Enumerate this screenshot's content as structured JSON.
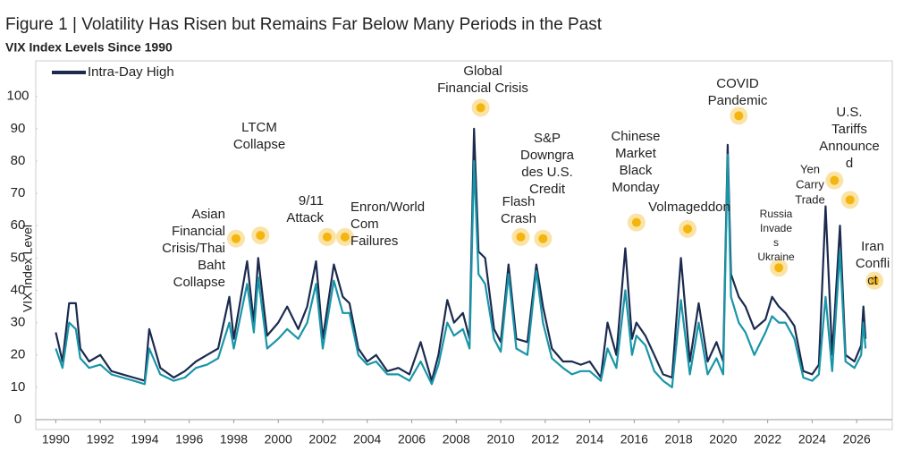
{
  "chart_data": {
    "type": "line",
    "title": "Figure 1 | Volatility Has Risen but Remains Far Below Many Periods in the Past",
    "subtitle": "VIX Index Levels Since 1990",
    "y_label": "VIX Index Level",
    "xlim": [
      1989.1,
      2027.6
    ],
    "ylim": [
      0,
      111
    ],
    "xticks": [
      1990,
      1992,
      1994,
      1996,
      1998,
      2000,
      2002,
      2004,
      2006,
      2008,
      2010,
      2012,
      2014,
      2016,
      2018,
      2020,
      2022,
      2024,
      2026
    ],
    "yticks": [
      0,
      10,
      20,
      30,
      40,
      50,
      60,
      70,
      80,
      90,
      100
    ],
    "legend": "top-left",
    "x": [
      1990.0,
      1990.3,
      1990.6,
      1990.9,
      1991.1,
      1991.5,
      1992.0,
      1992.5,
      1993.0,
      1993.5,
      1994.0,
      1994.2,
      1994.7,
      1995.3,
      1995.8,
      1996.3,
      1996.8,
      1997.3,
      1997.8,
      1998.0,
      1998.6,
      1998.9,
      1999.1,
      1999.5,
      2000.0,
      2000.4,
      2000.9,
      2001.3,
      2001.7,
      2002.0,
      2002.5,
      2002.9,
      2003.2,
      2003.6,
      2004.0,
      2004.4,
      2004.9,
      2005.4,
      2005.9,
      2006.4,
      2006.9,
      2007.2,
      2007.6,
      2007.9,
      2008.3,
      2008.6,
      2008.8,
      2009.0,
      2009.3,
      2009.7,
      2010.0,
      2010.35,
      2010.7,
      2011.2,
      2011.6,
      2011.9,
      2012.3,
      2012.8,
      2013.2,
      2013.6,
      2014.0,
      2014.5,
      2014.8,
      2015.2,
      2015.6,
      2015.9,
      2016.1,
      2016.5,
      2016.9,
      2017.3,
      2017.7,
      2018.1,
      2018.5,
      2018.9,
      2019.3,
      2019.7,
      2020.0,
      2020.2,
      2020.35,
      2020.7,
      2021.0,
      2021.4,
      2021.9,
      2022.2,
      2022.5,
      2022.8,
      2023.2,
      2023.6,
      2024.0,
      2024.3,
      2024.6,
      2024.9,
      2025.25,
      2025.5,
      2025.9,
      2026.2,
      2026.3,
      2026.4
    ],
    "series": [
      {
        "name": "Intra-Day High",
        "color": "#1b2a4e",
        "values": [
          27,
          18,
          36,
          36,
          22,
          18,
          20,
          15,
          14,
          13,
          12,
          28,
          16,
          13,
          15,
          18,
          20,
          22,
          38,
          25,
          49,
          30,
          50,
          26,
          30,
          35,
          28,
          35,
          49,
          25,
          48,
          38,
          36,
          22,
          18,
          20,
          15,
          16,
          14,
          24,
          12,
          20,
          37,
          30,
          33,
          25,
          90,
          52,
          50,
          28,
          24,
          48,
          25,
          24,
          48,
          35,
          22,
          18,
          18,
          17,
          18,
          13,
          30,
          20,
          53,
          25,
          30,
          26,
          20,
          14,
          13,
          50,
          18,
          36,
          18,
          24,
          18,
          85,
          45,
          38,
          35,
          28,
          31,
          38,
          35,
          33,
          29,
          15,
          14,
          17,
          66,
          20,
          60,
          20,
          18,
          23,
          35,
          25
        ]
      },
      {
        "color": "#1995a8",
        "values": [
          22,
          16,
          30,
          28,
          19,
          16,
          17,
          14,
          13,
          12,
          11,
          22,
          14,
          12,
          13,
          16,
          17,
          19,
          30,
          22,
          42,
          27,
          44,
          22,
          25,
          28,
          25,
          30,
          42,
          22,
          43,
          33,
          33,
          20,
          17,
          18,
          14,
          14,
          12,
          18,
          11,
          17,
          30,
          26,
          28,
          22,
          80,
          45,
          42,
          25,
          21,
          45,
          22,
          20,
          46,
          30,
          19,
          16,
          14,
          15,
          15,
          12,
          22,
          16,
          40,
          20,
          26,
          23,
          15,
          12,
          10,
          37,
          14,
          30,
          14,
          19,
          14,
          82,
          38,
          30,
          27,
          20,
          27,
          32,
          30,
          30,
          25,
          13,
          12,
          14,
          38,
          15,
          52,
          18,
          16,
          20,
          30,
          22
        ]
      }
    ],
    "annotations": [
      {
        "text": [
          "Asian",
          "Financial",
          "Crisis/Thai",
          "Baht",
          "Collapse"
        ],
        "x": 1998.1,
        "y": 56
      },
      {
        "text": [
          "LTCM",
          "Collapse"
        ],
        "x": 1999.2,
        "y": 57
      },
      {
        "text": [
          "9/11",
          "Attack"
        ],
        "x": 2002.2,
        "y": 56.5
      },
      {
        "text": [
          "Enron/World",
          "Com",
          "Failures"
        ],
        "x": 2003.0,
        "y": 56.5
      },
      {
        "text": [
          "Global",
          "Financial Crisis"
        ],
        "x": 2009.1,
        "y": 96.5
      },
      {
        "text": [
          "Flash",
          "Crash"
        ],
        "x": 2010.9,
        "y": 56.5
      },
      {
        "text": [
          "S&P",
          "Downgra",
          "des U.S.",
          "Credit"
        ],
        "x": 2011.9,
        "y": 56
      },
      {
        "text": [
          "Chinese",
          "Market",
          "Black",
          "Monday"
        ],
        "x": 2016.1,
        "y": 61
      },
      {
        "text": [
          "Volmageddon"
        ],
        "x": 2018.4,
        "y": 59
      },
      {
        "text": [
          "COVID",
          "Pandemic"
        ],
        "x": 2020.7,
        "y": 94
      },
      {
        "text": [
          "Russia",
          "Invade",
          "s",
          "Ukraine"
        ],
        "x": 2022.5,
        "y": 47
      },
      {
        "text": [
          "Yen",
          "Carry",
          "Trade"
        ],
        "x": 2025.0,
        "y": 74
      },
      {
        "text": [
          "U.S.",
          "Tariffs",
          "Announce",
          "d"
        ],
        "x": 2025.7,
        "y": 68
      },
      {
        "text": [
          "Iran",
          "Confli",
          "ct"
        ],
        "x": 2026.8,
        "y": 43
      }
    ]
  }
}
